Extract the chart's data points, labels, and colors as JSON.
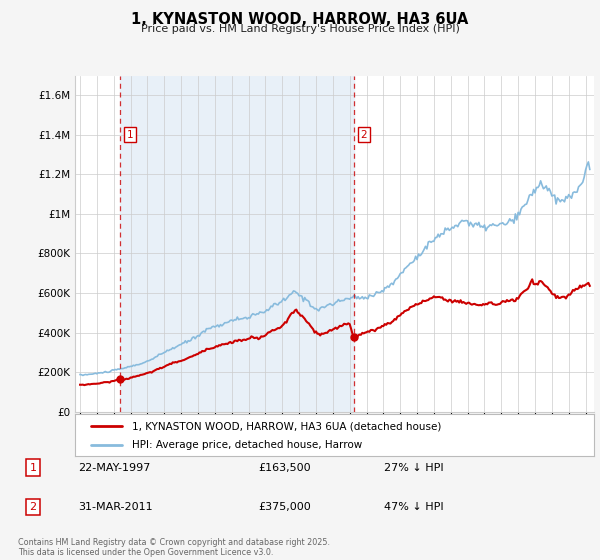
{
  "title": "1, KYNASTON WOOD, HARROW, HA3 6UA",
  "subtitle": "Price paid vs. HM Land Registry's House Price Index (HPI)",
  "legend_line1": "1, KYNASTON WOOD, HARROW, HA3 6UA (detached house)",
  "legend_line2": "HPI: Average price, detached house, Harrow",
  "footnote": "Contains HM Land Registry data © Crown copyright and database right 2025.\nThis data is licensed under the Open Government Licence v3.0.",
  "purchase1_date": "22-MAY-1997",
  "purchase1_price": 163500,
  "purchase1_label": "27% ↓ HPI",
  "purchase2_date": "31-MAR-2011",
  "purchase2_price": 375000,
  "purchase2_label": "47% ↓ HPI",
  "line_color_price": "#cc0000",
  "line_color_hpi": "#88bbdd",
  "vline_color": "#cc0000",
  "shade_color": "#ddeeff",
  "ylim": [
    0,
    1700000
  ],
  "yticks": [
    0,
    200000,
    400000,
    600000,
    800000,
    1000000,
    1200000,
    1400000,
    1600000
  ],
  "ytick_labels": [
    "£0",
    "£200K",
    "£400K",
    "£600K",
    "£800K",
    "£1M",
    "£1.2M",
    "£1.4M",
    "£1.6M"
  ],
  "purchase1_x": 1997.38,
  "purchase2_x": 2011.25,
  "xlim_start": 1994.7,
  "xlim_end": 2025.5,
  "bg_color": "#f0f4f8",
  "plot_bg_color": "#ffffff"
}
